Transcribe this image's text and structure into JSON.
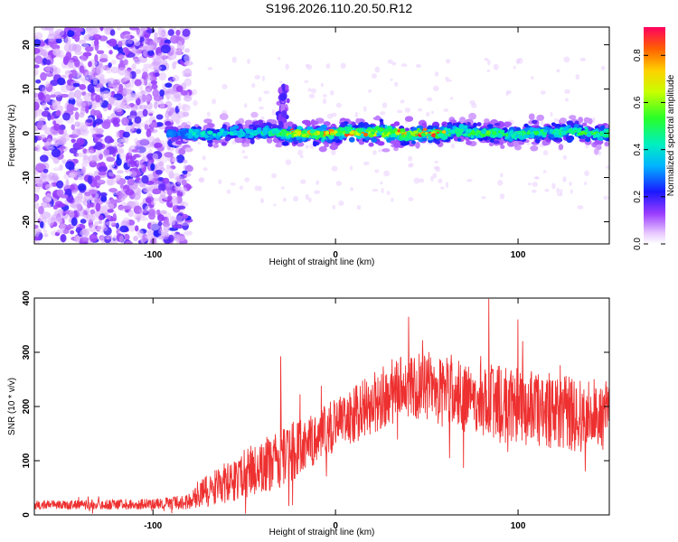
{
  "title": "S196.2026.110.20.50.R12",
  "colors": {
    "line": "#ee3030",
    "frame": "#000000",
    "background": "#ffffff"
  },
  "chart_data": [
    {
      "id": "spectrogram",
      "type": "heatmap",
      "xlabel": "Height of straight line (km)",
      "ylabel": "Frequency (Hz)",
      "xlim": [
        -165,
        150
      ],
      "ylim": [
        -25,
        24
      ],
      "xticks": [
        -100,
        0,
        100
      ],
      "xtick_labels": [
        "-100",
        "0",
        "100"
      ],
      "yticks": [
        -20,
        -10,
        0,
        10,
        20
      ],
      "ytick_labels": [
        "-20",
        "-10",
        "0",
        "10",
        "20"
      ],
      "grid": false,
      "colorbar": {
        "label": "Normalized spectral amplitude",
        "range": [
          0.0,
          0.92
        ],
        "ticks": [
          0.0,
          0.2,
          0.4,
          0.6,
          0.8
        ],
        "tick_labels": [
          "0.0",
          "0.2",
          "0.4",
          "0.6",
          "0.8"
        ],
        "colormap": "hsv-rainbow"
      },
      "features": {
        "noise_region_x": [
          -165,
          -82
        ],
        "ridge_frequency": 0,
        "ridge_halfwidth_hz": 3,
        "burst_x": -29,
        "burst_frequency": 10,
        "peak_amplitude_region_x": [
          -30,
          60
        ]
      }
    },
    {
      "id": "snr",
      "type": "line",
      "xlabel": "Height of straight line (km)",
      "ylabel": "SNR (10 * v/v)",
      "xlim": [
        -165,
        150
      ],
      "ylim": [
        0,
        400
      ],
      "xticks": [
        -100,
        0,
        100
      ],
      "xtick_labels": [
        "-100",
        "0",
        "100"
      ],
      "yticks": [
        0,
        100,
        200,
        300,
        400
      ],
      "ytick_labels": [
        "0",
        "100",
        "200",
        "300",
        "400"
      ],
      "grid": false,
      "series": [
        {
          "name": "SNR",
          "envelope_x": [
            -165,
            -100,
            -80,
            -70,
            -50,
            -30,
            0,
            20,
            40,
            50,
            70,
            100,
            130,
            150
          ],
          "envelope_mean": [
            18,
            20,
            25,
            45,
            75,
            105,
            165,
            205,
            240,
            235,
            215,
            200,
            185,
            185
          ],
          "envelope_spread": [
            8,
            10,
            15,
            30,
            45,
            55,
            50,
            55,
            60,
            60,
            70,
            70,
            70,
            65
          ],
          "notable_spikes": [
            [
              -30,
              292
            ],
            [
              40,
              365
            ],
            [
              84,
              398
            ],
            [
              100,
              360
            ]
          ]
        }
      ]
    }
  ]
}
